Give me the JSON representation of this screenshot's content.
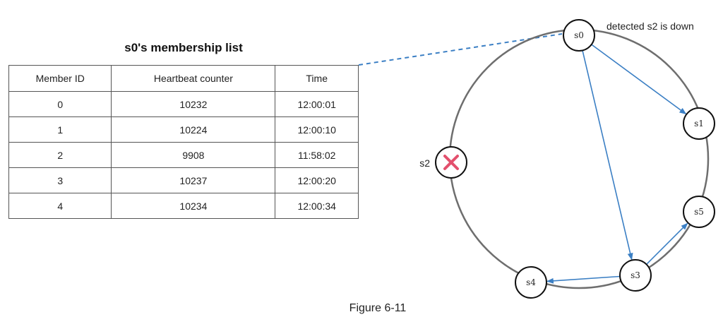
{
  "table": {
    "title": "s0's membership list",
    "headers": [
      "Member ID",
      "Heartbeat counter",
      "Time"
    ],
    "rows": [
      {
        "id": "0",
        "heartbeat": "10232",
        "time": "12:00:01",
        "stale": false
      },
      {
        "id": "1",
        "heartbeat": "10224",
        "time": "12:00:10",
        "stale": false
      },
      {
        "id": "2",
        "heartbeat": "9908",
        "time": "11:58:02",
        "stale": true
      },
      {
        "id": "3",
        "heartbeat": "10237",
        "time": "12:00:20",
        "stale": false
      },
      {
        "id": "4",
        "heartbeat": "10234",
        "time": "12:00:34",
        "stale": false
      }
    ]
  },
  "diagram": {
    "annotation": "detected s2 is down",
    "nodes": [
      {
        "id": "s0",
        "label": "s0"
      },
      {
        "id": "s1",
        "label": "s1"
      },
      {
        "id": "s2",
        "label": "s2",
        "down": true
      },
      {
        "id": "s3",
        "label": "s3"
      },
      {
        "id": "s4",
        "label": "s4"
      },
      {
        "id": "s5",
        "label": "s5"
      }
    ],
    "edges": [
      {
        "from": "s0",
        "to": "s1"
      },
      {
        "from": "s0",
        "to": "s3"
      },
      {
        "from": "s3",
        "to": "s5"
      },
      {
        "from": "s3",
        "to": "s4"
      }
    ]
  },
  "caption": "Figure 6-11",
  "colors": {
    "edge": "#3b7fc4",
    "ring": "#6e6e6e",
    "down_mark": "#e3506d",
    "stale_text": "#c4161c"
  }
}
